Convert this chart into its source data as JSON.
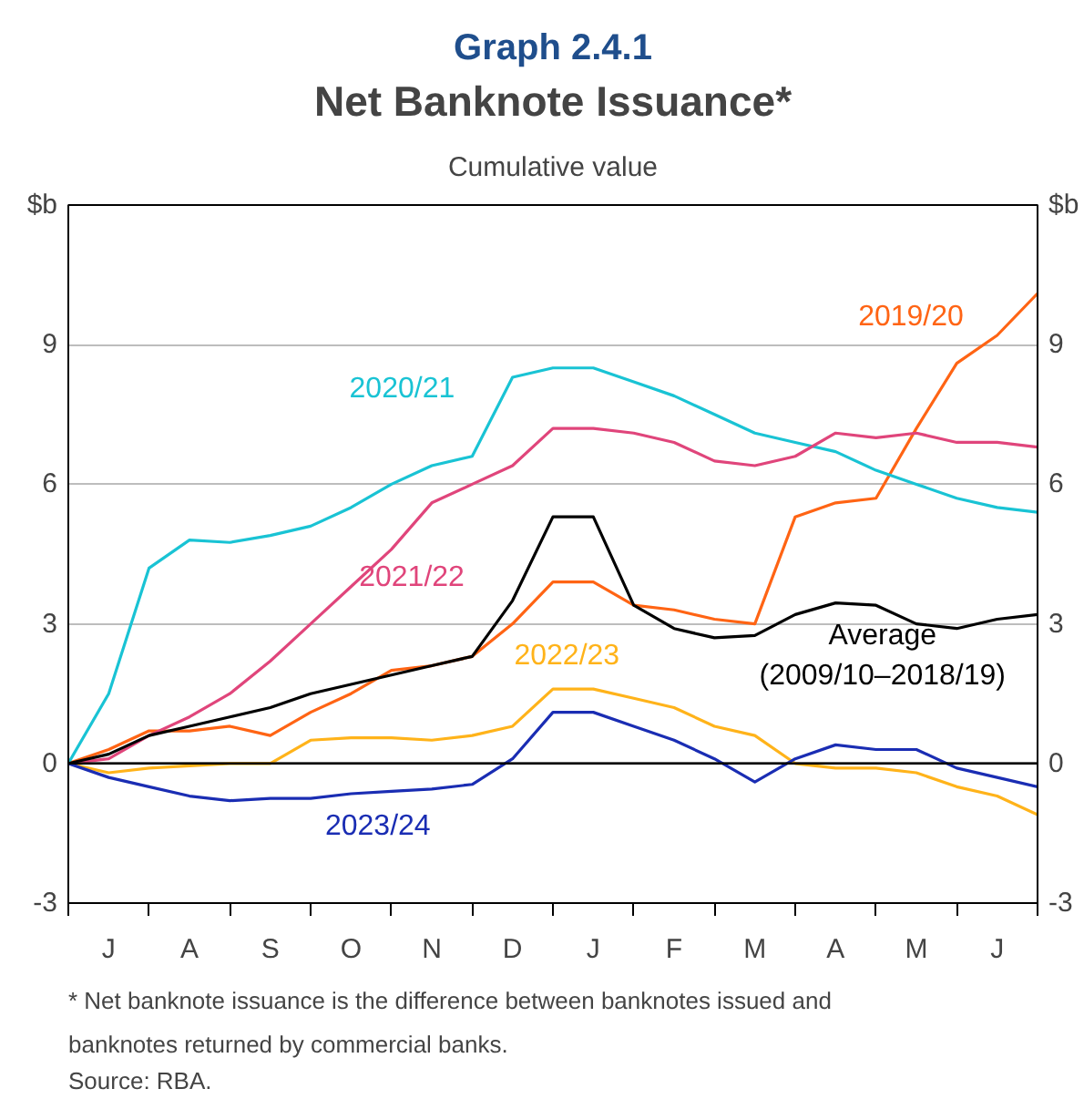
{
  "chart_data": {
    "type": "line",
    "title": "Net Banknote Issuance*",
    "subtitle": "Cumulative value",
    "ylabel": "$b",
    "y2label": "$b",
    "annotations": [
      "Graph 2.4.1",
      "*   Net banknote issuance is the difference between banknotes issued and banknotes returned by commercial banks.",
      "Source:   RBA."
    ],
    "categories": [
      null,
      "J",
      null,
      "A",
      null,
      "S",
      null,
      "O",
      null,
      "N",
      null,
      "D",
      null,
      "J",
      null,
      "F",
      null,
      "M",
      null,
      "A",
      null,
      "M",
      null,
      "J",
      null
    ],
    "ylim": [
      -3,
      12
    ],
    "yticks": [
      -3,
      0,
      3,
      6,
      9
    ],
    "y2lim": [
      -3,
      12
    ],
    "y2ticks": [
      -3,
      0,
      3,
      6,
      9
    ],
    "grid": "y",
    "ref_lines": [
      {
        "axis": "y",
        "value": 0,
        "color": "#000000"
      }
    ],
    "series": [
      {
        "name": "2019/20",
        "color": "#ff6414",
        "values": [
          0,
          0.3,
          0.7,
          0.7,
          0.8,
          0.6,
          1.1,
          1.5,
          2.0,
          2.1,
          2.3,
          3.0,
          3.9,
          3.9,
          3.4,
          3.3,
          3.1,
          3.0,
          5.3,
          5.6,
          5.7,
          7.2,
          8.6,
          9.2,
          10.1
        ]
      },
      {
        "name": "2020/21",
        "color": "#19c3d4",
        "values": [
          0,
          1.5,
          4.2,
          4.8,
          4.75,
          4.9,
          5.1,
          5.5,
          6.0,
          6.4,
          6.6,
          8.3,
          8.5,
          8.5,
          8.2,
          7.9,
          7.5,
          7.1,
          6.9,
          6.7,
          6.3,
          6.0,
          5.7,
          5.5,
          5.4
        ]
      },
      {
        "name": "2021/22",
        "color": "#e0457b",
        "values": [
          0,
          0.1,
          0.6,
          1.0,
          1.5,
          2.2,
          3.0,
          3.8,
          4.6,
          5.6,
          6.0,
          6.4,
          7.2,
          7.2,
          7.1,
          6.9,
          6.5,
          6.4,
          6.6,
          7.1,
          7.0,
          7.1,
          6.9,
          6.9,
          6.8
        ]
      },
      {
        "name": "2022/23",
        "color": "#ffb31a",
        "values": [
          0,
          -0.2,
          -0.1,
          -0.05,
          0.0,
          0.0,
          0.5,
          0.55,
          0.55,
          0.5,
          0.6,
          0.8,
          1.6,
          1.6,
          1.4,
          1.2,
          0.8,
          0.6,
          0.0,
          -0.1,
          -0.1,
          -0.2,
          -0.5,
          -0.7,
          -1.1
        ]
      },
      {
        "name": "2023/24",
        "color": "#1a2db3",
        "values": [
          0,
          -0.3,
          -0.5,
          -0.7,
          -0.8,
          -0.75,
          -0.75,
          -0.65,
          -0.6,
          -0.55,
          -0.45,
          0.1,
          1.1,
          1.1,
          0.8,
          0.5,
          0.1,
          -0.4,
          0.1,
          0.4,
          0.3,
          0.3,
          -0.1,
          -0.3,
          -0.5
        ]
      },
      {
        "name": "Average (2009/10–2018/19)",
        "color": "#000000",
        "values": [
          0,
          0.2,
          0.6,
          0.8,
          1.0,
          1.2,
          1.5,
          1.7,
          1.9,
          2.1,
          2.3,
          3.5,
          5.3,
          5.3,
          3.4,
          2.9,
          2.7,
          2.75,
          3.2,
          3.45,
          3.4,
          3.0,
          2.9,
          3.1,
          3.2
        ]
      }
    ]
  }
}
